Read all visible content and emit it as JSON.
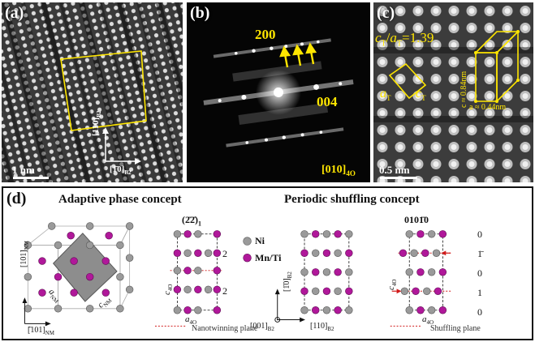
{
  "panel_a": {
    "letter": "(a)",
    "dir_label_1": "[110]",
    "dir_sub_1": "B2",
    "dir_label_2": "[1̄0]",
    "dir_sub_2": "B2",
    "scale_bar": "1 nm"
  },
  "panel_b": {
    "letter": "(b)",
    "spot_200": "200",
    "spot_004": "004",
    "zone_axis": "[010]",
    "zone_sub": "4O"
  },
  "panel_c": {
    "letter": "(c)",
    "ratio_label": "c₁/a₁=1.39",
    "ratio_c": "c",
    "ratio_a": "a",
    "ratio_sub": "T",
    "ratio_value": "=1.39",
    "a_t": "a",
    "c_t": "c",
    "t_sub": "T",
    "c_dim": "c ≈ 0.84nm",
    "a_dim": "a ≈ 0.44nm",
    "scale_bar": "0.5 nm"
  },
  "panel_d": {
    "letter": "(d)",
    "adaptive_title": "Adaptive phase concept",
    "periodic_title": "Periodic shuffling concept",
    "twin_label": "(2̄2̄)",
    "twin_sub": "1",
    "legend_ni": "Ni",
    "legend_mn": "Mn/Ti",
    "axis_101_nm": "[101]",
    "axis_101bar_nm": "[̄101]",
    "nm_sub": "NM",
    "a_nm": "a",
    "c_nm": "c",
    "c_4o": "c",
    "a_4o": "a",
    "sub_4o": "4O",
    "twin_count_1": "2",
    "twin_count_2": "2",
    "nanotwinning_plane": "Nanotwinning plane",
    "axis_1bar10_b2": "[1̄0]",
    "axis_001_b2": "[001]",
    "axis_110_b2": "[110]",
    "b2_sub": "B2",
    "shuffle_sequence": "0101̄0",
    "shuffle_values": [
      "0",
      "1̄",
      "0",
      "1",
      "0"
    ],
    "shuffling_plane": "Shuffling plane"
  },
  "colors": {
    "yellow": "#ffe600",
    "ni_gray": "#9a9a9a",
    "mn_ti_magenta": "#b0189a",
    "dashed_red": "#d11a1a"
  }
}
